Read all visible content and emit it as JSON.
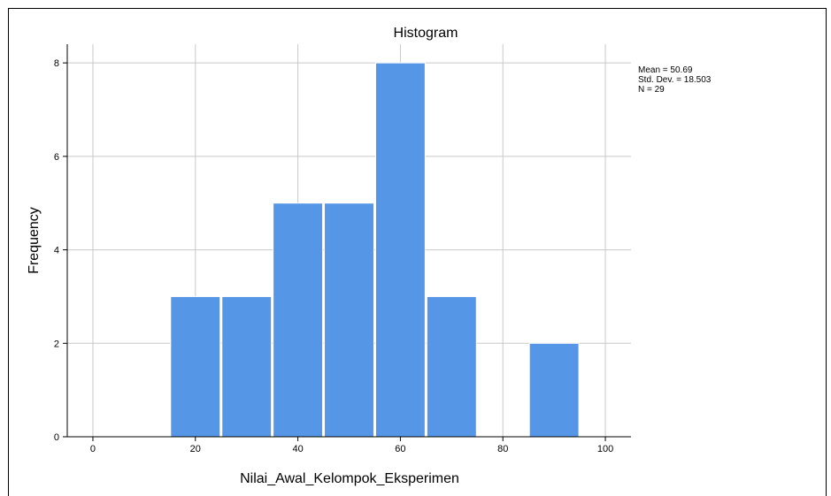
{
  "chart_data": {
    "type": "bar",
    "title": "Histogram",
    "xlabel": "Nilai_Awal_Kelompok_Eksperimen",
    "ylabel": "Frequency",
    "xlim": [
      -5,
      105
    ],
    "ylim": [
      0,
      8.4
    ],
    "xticks": [
      0,
      20,
      40,
      60,
      80,
      100
    ],
    "yticks": [
      0,
      2,
      4,
      6,
      8
    ],
    "grid": true,
    "bins": [
      {
        "start": 15,
        "end": 25,
        "value": 3
      },
      {
        "start": 25,
        "end": 35,
        "value": 3
      },
      {
        "start": 35,
        "end": 45,
        "value": 5
      },
      {
        "start": 45,
        "end": 55,
        "value": 5
      },
      {
        "start": 55,
        "end": 65,
        "value": 8
      },
      {
        "start": 65,
        "end": 75,
        "value": 3
      },
      {
        "start": 85,
        "end": 95,
        "value": 2
      }
    ],
    "bar_color": "#5596e6",
    "stats": {
      "mean": "Mean = 50.69",
      "std": "Std. Dev. = 18.503",
      "n": "N = 29"
    }
  }
}
